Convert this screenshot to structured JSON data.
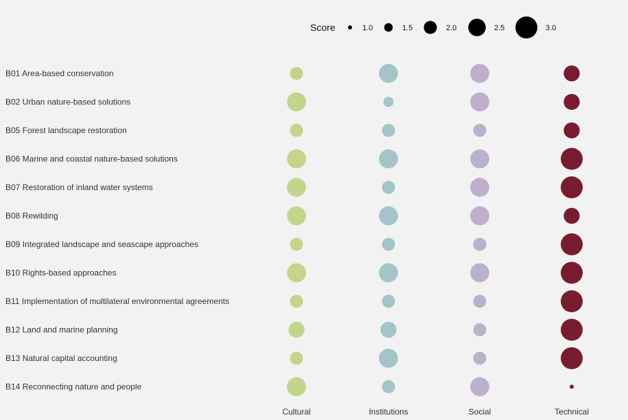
{
  "chart_data": {
    "type": "scatter",
    "subtype": "bubble-matrix",
    "categories": [
      "B01 Area-based conservation",
      "B02 Urban nature-based solutions",
      "B05 Forest landscape restoration",
      "B06 Marine and coastal nature-based solutions",
      "B07 Restoration of inland water systems",
      "B08 Rewilding",
      "B09 Integrated landscape and seascape approaches",
      "B10 Rights-based approaches",
      "B11 Implementation of multilateral environmental agreements",
      "B12 Land and marine planning",
      "B13 Natural capital accounting",
      "B14 Reconnecting nature and people"
    ],
    "series": [
      {
        "name": "Cultural",
        "color": "#c4d48a",
        "values": [
          2.0,
          2.67,
          2.0,
          2.67,
          2.67,
          2.67,
          2.0,
          2.67,
          2.0,
          2.33,
          2.0,
          2.67
        ]
      },
      {
        "name": "Institutions",
        "color": "#a3c4c8",
        "values": [
          2.67,
          1.67,
          2.0,
          2.67,
          2.0,
          2.67,
          2.0,
          2.67,
          2.0,
          2.33,
          2.67,
          2.0
        ]
      },
      {
        "name": "Social",
        "color": "#bcb0cc",
        "values": [
          2.67,
          2.67,
          2.0,
          2.67,
          2.67,
          2.67,
          2.0,
          2.67,
          2.0,
          2.0,
          2.0,
          2.67
        ]
      },
      {
        "name": "Technical",
        "color": "#781c30",
        "values": [
          2.33,
          2.33,
          2.33,
          3.0,
          3.0,
          2.33,
          3.0,
          3.0,
          3.0,
          3.0,
          3.0,
          1.0
        ]
      }
    ],
    "legend": {
      "title": "Score",
      "placement": "top",
      "values": [
        1.0,
        1.5,
        2.0,
        2.5,
        3.0
      ],
      "labels": [
        "1.0",
        "1.5",
        "2.0",
        "2.5",
        "3.0"
      ],
      "color": "#000000"
    },
    "xlabel": "",
    "ylabel": ""
  }
}
